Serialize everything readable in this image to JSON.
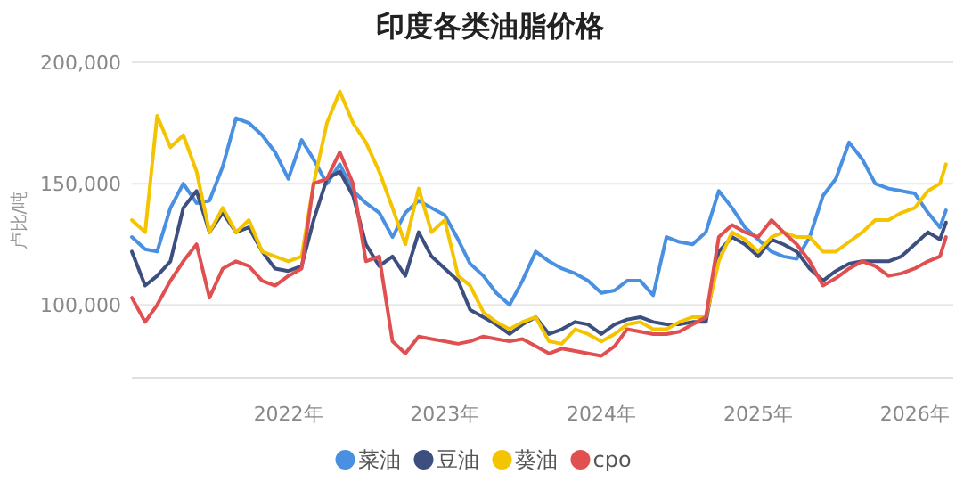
{
  "chart_data": {
    "type": "line",
    "title": "印度各类油脂价格",
    "ylabel": "卢比/吨",
    "x": [
      "2021-01-01",
      "2021-02-01",
      "2021-03-01",
      "2021-04-01",
      "2021-05-01",
      "2021-06-01",
      "2021-07-01",
      "2021-08-01",
      "2021-09-01",
      "2021-10-01",
      "2021-11-01",
      "2021-12-01",
      "2022-01-01",
      "2022-02-01",
      "2022-03-01",
      "2022-04-01",
      "2022-05-01",
      "2022-06-01",
      "2022-07-01",
      "2022-08-01",
      "2022-09-01",
      "2022-10-01",
      "2022-11-01",
      "2022-12-01",
      "2023-01-01",
      "2023-02-01",
      "2023-03-01",
      "2023-04-01",
      "2023-05-01",
      "2023-06-01",
      "2023-07-01",
      "2023-08-01",
      "2023-09-01",
      "2023-10-01",
      "2023-11-01",
      "2023-12-01",
      "2024-01-01",
      "2024-02-01",
      "2024-03-01",
      "2024-04-01",
      "2024-05-01",
      "2024-06-01",
      "2024-07-01",
      "2024-08-01",
      "2024-09-01",
      "2024-10-01",
      "2024-11-01",
      "2024-12-01",
      "2025-01-01",
      "2025-02-01",
      "2025-03-01",
      "2025-04-01",
      "2025-05-01",
      "2025-06-01",
      "2025-07-01",
      "2025-08-01",
      "2025-09-01",
      "2025-10-01",
      "2025-11-01",
      "2025-12-01",
      "2026-01-01",
      "2026-02-01",
      "2026-03-01",
      "2026-03-15"
    ],
    "series": [
      {
        "name": "菜油",
        "color": "#4a90e2",
        "values": [
          128000,
          123000,
          122000,
          140000,
          150000,
          142000,
          143000,
          157000,
          177000,
          175000,
          170000,
          163000,
          152000,
          168000,
          160000,
          150000,
          158000,
          147000,
          142000,
          138000,
          128000,
          138000,
          143000,
          140000,
          137000,
          127000,
          117000,
          112000,
          105000,
          100000,
          110000,
          122000,
          118000,
          115000,
          113000,
          110000,
          105000,
          106000,
          110000,
          110000,
          104000,
          128000,
          126000,
          125000,
          130000,
          147000,
          140000,
          132000,
          127000,
          122000,
          120000,
          119000,
          128000,
          145000,
          152000,
          167000,
          160000,
          150000,
          148000,
          147000,
          146000,
          138000,
          132000,
          139000
        ]
      },
      {
        "name": "豆油",
        "color": "#3d4f7f",
        "values": [
          122000,
          108000,
          112000,
          118000,
          140000,
          147000,
          130000,
          138000,
          130000,
          132000,
          122000,
          115000,
          114000,
          116000,
          135000,
          152000,
          155000,
          145000,
          125000,
          116000,
          120000,
          112000,
          130000,
          120000,
          115000,
          110000,
          98000,
          95000,
          92000,
          88000,
          92000,
          95000,
          88000,
          90000,
          93000,
          92000,
          88000,
          92000,
          94000,
          95000,
          93000,
          92000,
          92000,
          93000,
          93000,
          122000,
          128000,
          125000,
          120000,
          127000,
          125000,
          122000,
          115000,
          110000,
          114000,
          117000,
          118000,
          118000,
          118000,
          120000,
          125000,
          130000,
          127000,
          134000
        ]
      },
      {
        "name": "葵油",
        "color": "#f5c400",
        "values": [
          135000,
          130000,
          178000,
          165000,
          170000,
          155000,
          130000,
          140000,
          130000,
          135000,
          122000,
          120000,
          118000,
          120000,
          150000,
          175000,
          188000,
          175000,
          167000,
          155000,
          140000,
          125000,
          148000,
          130000,
          135000,
          112000,
          108000,
          97000,
          93000,
          90000,
          93000,
          95000,
          85000,
          84000,
          90000,
          88000,
          85000,
          88000,
          92000,
          93000,
          90000,
          90000,
          93000,
          95000,
          95000,
          118000,
          130000,
          127000,
          122000,
          128000,
          130000,
          128000,
          128000,
          122000,
          122000,
          126000,
          130000,
          135000,
          135000,
          138000,
          140000,
          147000,
          150000,
          158000
        ]
      },
      {
        "name": "cpo",
        "color": "#e05050",
        "values": [
          103000,
          93000,
          100000,
          110000,
          118000,
          125000,
          103000,
          115000,
          118000,
          116000,
          110000,
          108000,
          112000,
          115000,
          150000,
          152000,
          163000,
          150000,
          118000,
          120000,
          85000,
          80000,
          87000,
          86000,
          85000,
          84000,
          85000,
          87000,
          86000,
          85000,
          86000,
          83000,
          80000,
          82000,
          81000,
          80000,
          79000,
          83000,
          90000,
          89000,
          88000,
          88000,
          89000,
          92000,
          95000,
          128000,
          133000,
          130000,
          128000,
          135000,
          130000,
          125000,
          118000,
          108000,
          111000,
          115000,
          118000,
          116000,
          112000,
          113000,
          115000,
          118000,
          120000,
          128000
        ]
      }
    ],
    "xlim": [
      "2021-01-01",
      "2026-04-01"
    ],
    "xticks": [
      {
        "value": "2022-01-01",
        "label": "2022年"
      },
      {
        "value": "2023-01-01",
        "label": "2023年"
      },
      {
        "value": "2024-01-01",
        "label": "2024年"
      },
      {
        "value": "2025-01-01",
        "label": "2025年"
      },
      {
        "value": "2026-01-01",
        "label": "2026年"
      }
    ],
    "ylim": [
      70000,
      200000
    ],
    "yticks": [
      {
        "value": 100000,
        "label": "100,000"
      },
      {
        "value": 150000,
        "label": "150,000"
      },
      {
        "value": 200000,
        "label": "200,000"
      }
    ],
    "grid": "y",
    "legend": "bottom",
    "marker": "none",
    "line_style": "solid"
  }
}
